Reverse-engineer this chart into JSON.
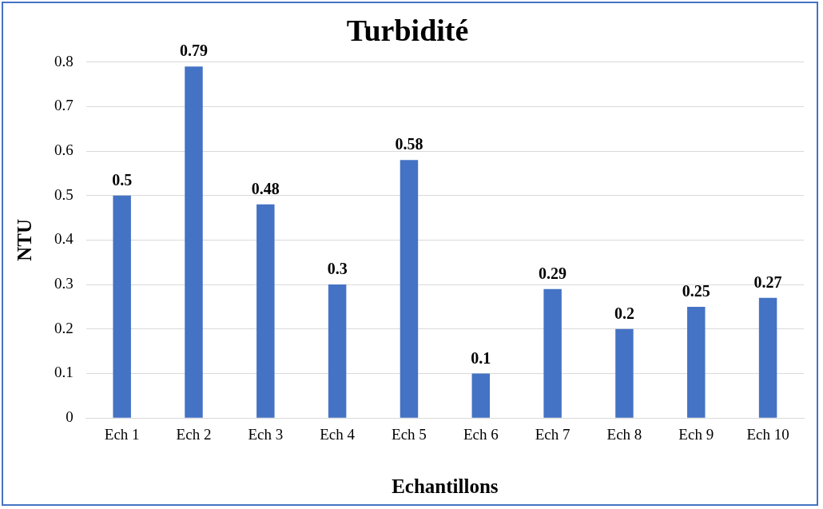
{
  "chart_data": {
    "type": "bar",
    "title": "Turbidité",
    "xlabel": "Echantillons",
    "ylabel": "NTU",
    "categories": [
      "Ech 1",
      "Ech 2",
      "Ech 3",
      "Ech 4",
      "Ech 5",
      "Ech 6",
      "Ech 7",
      "Ech 8",
      "Ech 9",
      "Ech 10"
    ],
    "values": [
      0.5,
      0.79,
      0.48,
      0.3,
      0.58,
      0.1,
      0.29,
      0.2,
      0.25,
      0.27
    ],
    "color": "#4472c4",
    "ylim": [
      0,
      0.8
    ],
    "yticks": [
      0,
      0.1,
      0.2,
      0.3,
      0.4,
      0.5,
      0.6,
      0.7,
      0.8
    ],
    "grid": "y",
    "data_labels": true,
    "legend": false
  }
}
